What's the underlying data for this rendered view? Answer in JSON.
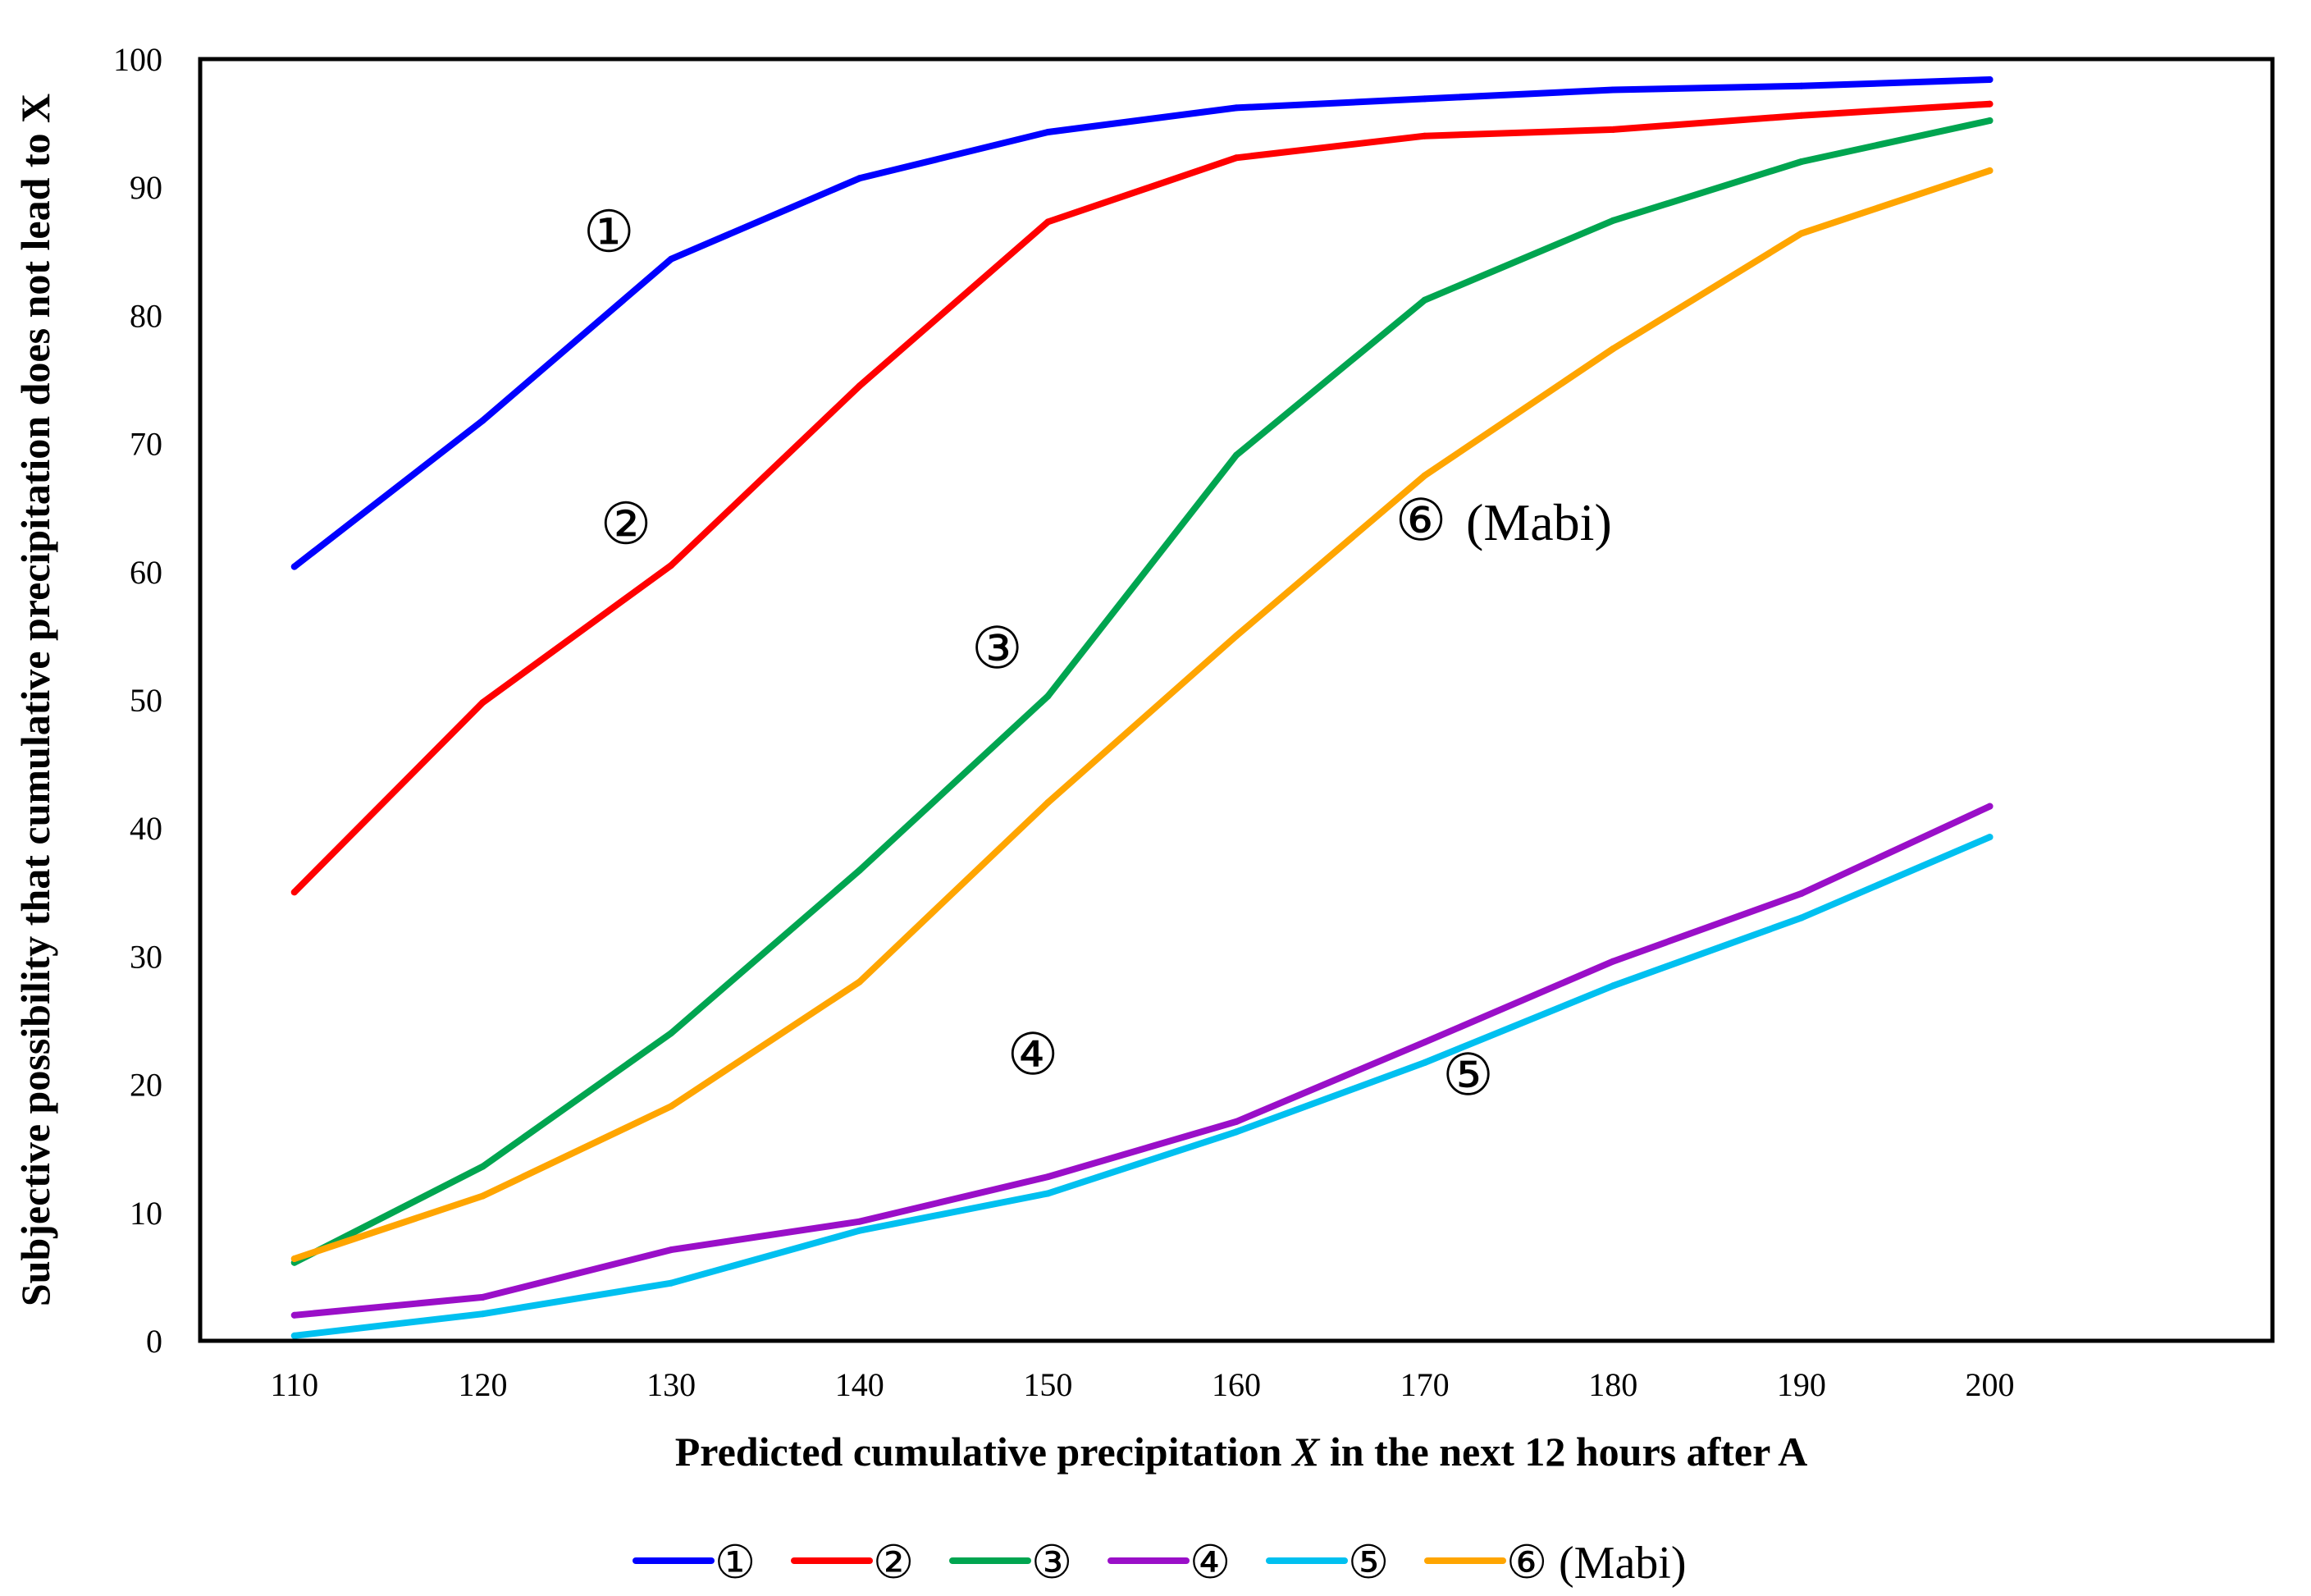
{
  "chart_data": {
    "type": "line",
    "title": "",
    "xlabel_prefix": "Predicted cumulative precipitation ",
    "xlabel_var": "X",
    "xlabel_suffix": " in the next 12 hours after A",
    "ylabel": "Subjective possibility that cumulative precipitation does not lead to X",
    "x": [
      110,
      120,
      130,
      140,
      150,
      160,
      170,
      180,
      190,
      200
    ],
    "xlim": [
      105,
      215
    ],
    "ylim": [
      0,
      100
    ],
    "yticks": [
      0,
      10,
      20,
      30,
      40,
      50,
      60,
      70,
      80,
      90,
      100
    ],
    "grid": false,
    "legend_position": "bottom",
    "series": [
      {
        "name": "①",
        "label": "①",
        "suffix": "",
        "color": "#0000ff",
        "values": [
          60.4,
          71.8,
          84.4,
          90.7,
          94.3,
          96.2,
          96.9,
          97.6,
          97.9,
          98.4
        ]
      },
      {
        "name": "②",
        "label": "②",
        "suffix": "",
        "color": "#ff0000",
        "values": [
          35.0,
          49.8,
          60.5,
          74.5,
          87.3,
          92.3,
          94.0,
          94.5,
          95.6,
          96.5
        ]
      },
      {
        "name": "③",
        "label": "③",
        "suffix": "",
        "color": "#00a550",
        "values": [
          6.1,
          13.6,
          24.0,
          36.7,
          50.3,
          69.1,
          81.2,
          87.4,
          92.0,
          95.2
        ]
      },
      {
        "name": "④",
        "label": "④",
        "suffix": "",
        "color": "#9a0fc8",
        "values": [
          2.0,
          3.4,
          7.1,
          9.3,
          12.8,
          17.1,
          23.3,
          29.6,
          34.9,
          41.7
        ]
      },
      {
        "name": "⑤",
        "label": "⑤",
        "suffix": "",
        "color": "#00c0f0",
        "values": [
          0.4,
          2.1,
          4.5,
          8.6,
          11.5,
          16.3,
          21.7,
          27.7,
          33.0,
          39.3
        ]
      },
      {
        "name": "⑥ (Mabi)",
        "label": "⑥",
        "suffix": "(Mabi)",
        "color": "#ffa500",
        "values": [
          6.4,
          11.3,
          18.3,
          28.0,
          42.0,
          55.0,
          67.5,
          77.4,
          86.4,
          91.3
        ]
      }
    ],
    "annotations": [
      {
        "series": 0,
        "text": "①",
        "suffix": "",
        "x": 126.7,
        "y": 85.0
      },
      {
        "series": 1,
        "text": "②",
        "suffix": "",
        "x": 127.6,
        "y": 62.2
      },
      {
        "series": 2,
        "text": "③",
        "suffix": "",
        "x": 147.3,
        "y": 52.5
      },
      {
        "series": 5,
        "text": "⑥",
        "suffix": "(Mabi)",
        "x": 169.8,
        "y": 62.5
      },
      {
        "series": 3,
        "text": "④",
        "suffix": "",
        "x": 149.2,
        "y": 20.8
      },
      {
        "series": 4,
        "text": "⑤",
        "suffix": "",
        "x": 172.3,
        "y": 19.2
      }
    ]
  }
}
